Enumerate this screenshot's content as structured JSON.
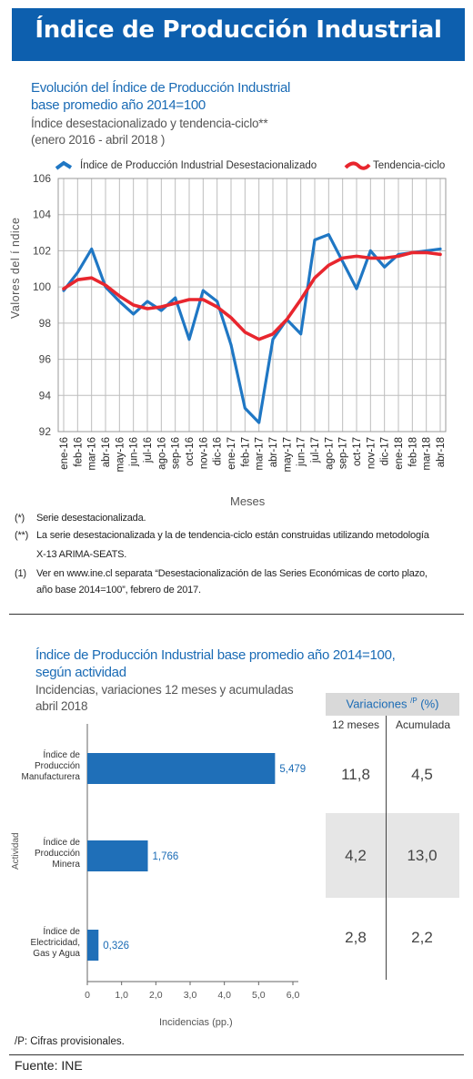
{
  "header": {
    "title": "Índice de Producción Industrial"
  },
  "chart1_text": {
    "title_line1": "Evolución del Índice de Producción  Industrial",
    "title_line2": "base promedio año 2014=100",
    "subtitle_line1": "Índice desestacionalizado y tendencia-ciclo**",
    "subtitle_line2": "(enero 2016 - abril 2018  )",
    "legend_seasonal": "Índice de Producción Industrial Desestacionalizado",
    "legend_trend": "Tendencia-ciclo",
    "ylabel": "Valores del í ndice",
    "xlabel": "Meses"
  },
  "notes": [
    {
      "mark": "(*)",
      "lines": [
        "Serie desestacionalizada."
      ]
    },
    {
      "mark": "(**)",
      "lines": [
        "La serie desestacionalizada y la de tendencia-ciclo están construidas utilizando metodología",
        "X-13 ARIMA-SEATS."
      ]
    },
    {
      "mark": "(1)",
      "lines": [
        "Ver en www.ine.cl separata “Desestacionalización de las Series Económicas de corto plazo,",
        "año base 2014=100”, febrero de 2017."
      ]
    }
  ],
  "chart2_text": {
    "title_line1": "Índice de Producción  Industrial base promedio año 2014=100,",
    "title_line2": "según actividad",
    "subtitle_line1": "Incidencias, variaciones 12 meses y acumuladas",
    "subtitle_line2": "abril 2018",
    "ylabel": "Actividad",
    "xlabel": "Incidencias (pp.)"
  },
  "table": {
    "header": "Variaciones",
    "header_sup": "/P",
    "header_unit": "(%)",
    "col1": "12 meses",
    "col2": "Acumulada",
    "rows": [
      {
        "v12": "11,8",
        "acum": "4,5"
      },
      {
        "v12": "4,2",
        "acum": "13,0"
      },
      {
        "v12": "2,8",
        "acum": "2,2"
      }
    ]
  },
  "footer": {
    "provisional": "/P: Cifras provisionales.",
    "source": "Fuente: INE"
  },
  "colors": {
    "brand": "#0d5fae",
    "seasonal": "#1f77c4",
    "trend": "#e8262e",
    "bar": "#1f6fb8"
  },
  "chart_data": [
    {
      "type": "line",
      "title": "Evolución del Índice de Producción  Industrial base promedio año 2014=100",
      "xlabel": "Meses",
      "ylabel": "Valores del í ndice",
      "ylim": [
        92,
        106
      ],
      "yticks": [
        92,
        94,
        96,
        98,
        100,
        102,
        104,
        106
      ],
      "grid": true,
      "legend": "top",
      "categories": [
        "ene-16",
        "feb-16",
        "mar-16",
        "abr-16",
        "may-16",
        "jun-16",
        "jul-16",
        "ago-16",
        "sep-16",
        "oct-16",
        "nov-16",
        "dic-16",
        "ene-17",
        "feb-17",
        "mar-17",
        "abr-17",
        "may-17",
        "jun-17",
        "jul-17",
        "ago-17",
        "sep-17",
        "oct-17",
        "nov-17",
        "dic-17",
        "ene-18",
        "feb-18",
        "mar-18",
        "abr-18"
      ],
      "series": [
        {
          "name": "Índice de Producción Industrial Desestacionalizado",
          "values": [
            99.8,
            100.8,
            102.1,
            100.0,
            99.2,
            98.5,
            99.2,
            98.7,
            99.4,
            97.1,
            99.8,
            99.2,
            96.8,
            93.3,
            92.5,
            97.1,
            98.2,
            97.4,
            102.6,
            102.9,
            101.4,
            99.9,
            102.0,
            101.1,
            101.8,
            101.9,
            102.0,
            102.1
          ]
        },
        {
          "name": "Tendencia-ciclo",
          "values": [
            99.9,
            100.4,
            100.5,
            100.1,
            99.5,
            99.0,
            98.8,
            98.9,
            99.1,
            99.3,
            99.3,
            98.9,
            98.3,
            97.5,
            97.1,
            97.4,
            98.2,
            99.3,
            100.5,
            101.2,
            101.6,
            101.7,
            101.6,
            101.6,
            101.7,
            101.9,
            101.9,
            101.8
          ]
        }
      ]
    },
    {
      "type": "bar",
      "orientation": "horizontal",
      "title": "Índice de Producción  Industrial base promedio año 2014=100, según actividad",
      "xlabel": "Incidencias (pp.)",
      "ylabel": "Actividad",
      "xlim": [
        0,
        6
      ],
      "xticks": [
        "0",
        "1,0",
        "2,0",
        "3,0",
        "4,0",
        "5,0",
        "6,0"
      ],
      "categories": [
        [
          "Índice de",
          "Producción",
          "Manufacturera"
        ],
        [
          "Índice de",
          "Producción",
          "Minera"
        ],
        [
          "Índice de",
          "Electricidad,",
          "Gas y Agua"
        ]
      ],
      "values": [
        5.479,
        1.766,
        0.326
      ],
      "value_labels": [
        "5,479",
        "1,766",
        "0,326"
      ]
    }
  ]
}
